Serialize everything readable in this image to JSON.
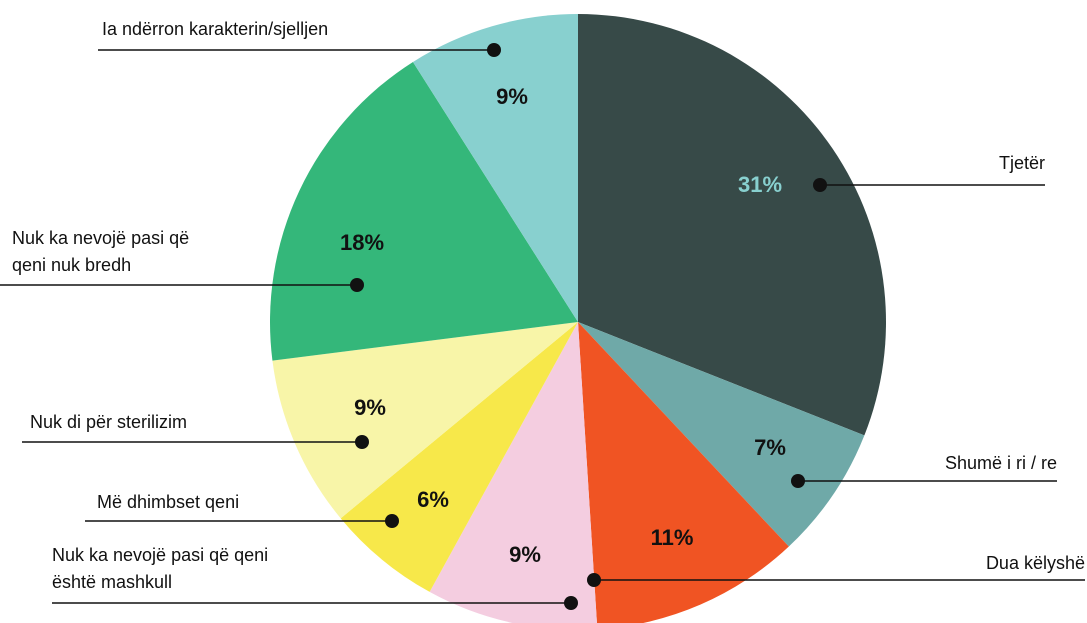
{
  "chart_data": {
    "type": "pie",
    "categories": [
      "Tjetër",
      "Shumë i ri / re",
      "Dua këlyshë",
      "Nuk ka nevojë pasi që qeni\nështë mashkull",
      "Më dhimbset qeni",
      "Nuk di për sterilizim",
      "Nuk ka nevojë pasi që\nqeni nuk bredh",
      "Ia ndërron karakterin/sjelljen"
    ],
    "values": [
      31,
      7,
      11,
      9,
      6,
      9,
      18,
      9
    ],
    "value_labels": [
      "31%",
      "7%",
      "11%",
      "9%",
      "6%",
      "9%",
      "18%",
      "9%"
    ],
    "colors": [
      "#374a48",
      "#6fa9a8",
      "#f05423",
      "#f4cde0",
      "#f7e84a",
      "#f8f5a8",
      "#34b77a",
      "#88d0cf"
    ],
    "value_label_colors": [
      "#88d0cf",
      "#111111",
      "#111111",
      "#111111",
      "#111111",
      "#111111",
      "#111111",
      "#111111"
    ]
  }
}
